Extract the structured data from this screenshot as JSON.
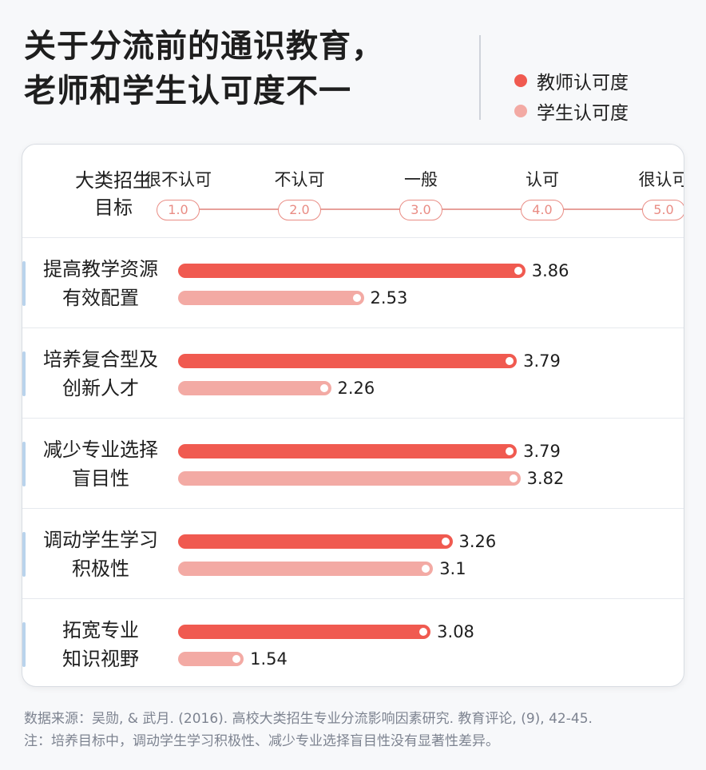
{
  "title": "关于分流前的通识教育，\n老师和学生认可度不一",
  "legend": [
    {
      "label": "教师认可度",
      "color": "#f05a50"
    },
    {
      "label": "学生认可度",
      "color": "#f3aaa4"
    }
  ],
  "header": {
    "title": "大类招生\n目标",
    "scale_labels": [
      "很不认可",
      "不认可",
      "一般",
      "认可",
      "很认可"
    ],
    "ticks": [
      "1.0",
      "2.0",
      "3.0",
      "4.0",
      "5.0"
    ]
  },
  "chart_data": {
    "type": "bar",
    "orientation": "horizontal",
    "categories": [
      "提高教学资源\n有效配置",
      "培养复合型及\n创新人才",
      "减少专业选择\n盲目性",
      "调动学生学习\n积极性",
      "拓宽专业\n知识视野"
    ],
    "series": [
      {
        "name": "教师认可度",
        "values": [
          3.86,
          3.79,
          3.79,
          3.26,
          3.08
        ],
        "labels": [
          "3.86",
          "3.79",
          "3.79",
          "3.26",
          "3.08"
        ],
        "color": "#f05a50"
      },
      {
        "name": "学生认可度",
        "values": [
          2.53,
          2.26,
          3.82,
          3.1,
          1.54
        ],
        "labels": [
          "2.53",
          "2.26",
          "3.82",
          "3.1",
          "1.54"
        ],
        "color": "#f3aaa4"
      }
    ],
    "xlim": [
      1.0,
      5.0
    ],
    "x_ticks": [
      "1.0",
      "2.0",
      "3.0",
      "4.0",
      "5.0"
    ],
    "x_tick_labels": [
      "很不认可",
      "不认可",
      "一般",
      "认可",
      "很认可"
    ],
    "legend_position": "top-right",
    "grid": false
  },
  "footer": {
    "source": "数据来源：吴勋, & 武月. (2016). 高校大类招生专业分流影响因素研究. 教育评论, (9), 42-45.",
    "note": "注：培养目标中，调动学生学习积极性、减少专业选择盲目性没有显著性差异。"
  }
}
